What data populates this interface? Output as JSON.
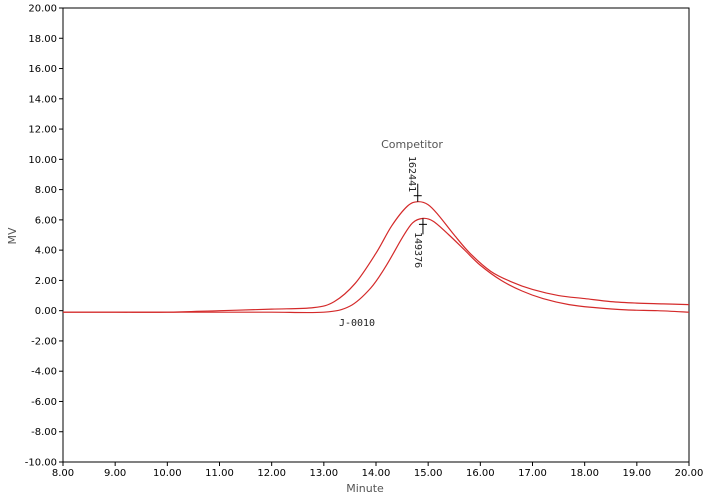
{
  "chart_data": {
    "type": "line",
    "xlabel": "Minute",
    "ylabel": "MV",
    "xlim": [
      8.0,
      20.0
    ],
    "ylim": [
      -10.0,
      20.0
    ],
    "x_ticks": [
      "8.00",
      "9.00",
      "10.00",
      "11.00",
      "12.00",
      "13.00",
      "14.00",
      "15.00",
      "16.00",
      "17.00",
      "18.00",
      "19.00",
      "20.00"
    ],
    "y_ticks": [
      "20.00",
      "18.00",
      "16.00",
      "14.00",
      "12.00",
      "10.00",
      "8.00",
      "6.00",
      "4.00",
      "2.00",
      "0.00",
      "-2.00",
      "-4.00",
      "-6.00",
      "-8.00",
      "-10.00"
    ],
    "grid": false,
    "line_color": "#d42a2a",
    "series": [
      {
        "name": "Competitor",
        "peak_label": "162441",
        "points": [
          [
            8.0,
            -0.1
          ],
          [
            9.0,
            -0.1
          ],
          [
            10.0,
            -0.1
          ],
          [
            11.0,
            0.0
          ],
          [
            12.0,
            0.1
          ],
          [
            12.8,
            0.2
          ],
          [
            13.2,
            0.6
          ],
          [
            13.6,
            1.8
          ],
          [
            14.0,
            3.8
          ],
          [
            14.3,
            5.6
          ],
          [
            14.6,
            6.9
          ],
          [
            14.8,
            7.2
          ],
          [
            15.0,
            7.0
          ],
          [
            15.2,
            6.3
          ],
          [
            15.5,
            5.0
          ],
          [
            15.8,
            3.8
          ],
          [
            16.2,
            2.6
          ],
          [
            16.6,
            1.9
          ],
          [
            17.0,
            1.4
          ],
          [
            17.5,
            1.0
          ],
          [
            18.0,
            0.8
          ],
          [
            18.5,
            0.6
          ],
          [
            19.0,
            0.5
          ],
          [
            19.5,
            0.45
          ],
          [
            20.0,
            0.4
          ]
        ]
      },
      {
        "name": "J-0010",
        "peak_label": "149376",
        "points": [
          [
            8.0,
            -0.1
          ],
          [
            9.0,
            -0.1
          ],
          [
            10.0,
            -0.1
          ],
          [
            11.0,
            -0.1
          ],
          [
            12.0,
            -0.1
          ],
          [
            13.0,
            -0.1
          ],
          [
            13.5,
            0.3
          ],
          [
            13.9,
            1.5
          ],
          [
            14.2,
            3.0
          ],
          [
            14.5,
            4.8
          ],
          [
            14.7,
            5.8
          ],
          [
            14.9,
            6.1
          ],
          [
            15.1,
            5.9
          ],
          [
            15.4,
            5.0
          ],
          [
            15.7,
            4.0
          ],
          [
            16.0,
            3.0
          ],
          [
            16.4,
            2.0
          ],
          [
            16.8,
            1.3
          ],
          [
            17.2,
            0.8
          ],
          [
            17.7,
            0.4
          ],
          [
            18.2,
            0.2
          ],
          [
            18.8,
            0.05
          ],
          [
            19.4,
            0.0
          ],
          [
            20.0,
            -0.1
          ]
        ]
      }
    ],
    "annotations": {
      "competitor_label": "Competitor",
      "j_label": "J-0010",
      "peak_label_1": "162441",
      "peak_label_2": "149376"
    }
  }
}
